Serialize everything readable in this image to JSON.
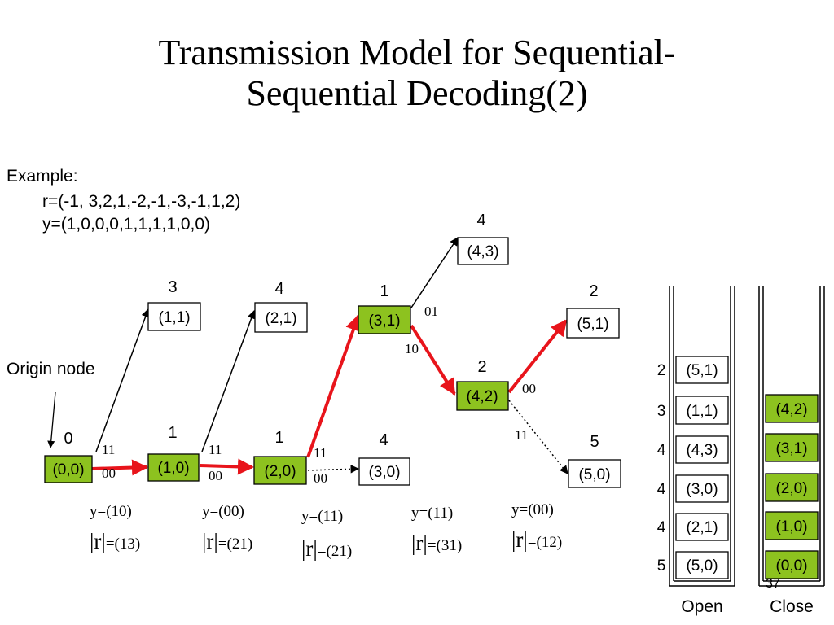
{
  "title_line1": "Transmission Model for Sequential-",
  "title_line2": "Sequential Decoding(2)",
  "example": {
    "label": "Example:",
    "r_line": "r=(-1, 3,2,1,-2,-1,-3,-1,1,2)",
    "y_line": "y=(1,0,0,0,1,1,1,1,0,0)"
  },
  "origin_label": "Origin node",
  "colors": {
    "node_fill": "#8DC21F",
    "path_red": "#E8141B",
    "outline": "#000000"
  },
  "nodes": [
    {
      "id": "n00",
      "label": "(0,0)",
      "metric": "0",
      "on_path": true
    },
    {
      "id": "n10",
      "label": "(1,0)",
      "metric": "1",
      "on_path": true
    },
    {
      "id": "n11",
      "label": "(1,1)",
      "metric": "3",
      "on_path": false
    },
    {
      "id": "n20",
      "label": "(2,0)",
      "metric": "1",
      "on_path": true
    },
    {
      "id": "n21",
      "label": "(2,1)",
      "metric": "4",
      "on_path": false
    },
    {
      "id": "n31",
      "label": "(3,1)",
      "metric": "1",
      "on_path": true
    },
    {
      "id": "n30",
      "label": "(3,0)",
      "metric": "4",
      "on_path": false
    },
    {
      "id": "n43",
      "label": "(4,3)",
      "metric": "4",
      "on_path": false
    },
    {
      "id": "n42",
      "label": "(4,2)",
      "metric": "2",
      "on_path": true
    },
    {
      "id": "n51",
      "label": "(5,1)",
      "metric": "2",
      "on_path": false
    },
    {
      "id": "n50",
      "label": "(5,0)",
      "metric": "5",
      "on_path": false
    }
  ],
  "edges": [
    {
      "from": "n00",
      "to": "n10",
      "style": "red"
    },
    {
      "from": "n00",
      "to": "n11",
      "style": "black"
    },
    {
      "from": "n10",
      "to": "n20",
      "style": "red"
    },
    {
      "from": "n10",
      "to": "n21",
      "style": "black"
    },
    {
      "from": "n20",
      "to": "n31",
      "style": "red"
    },
    {
      "from": "n20",
      "to": "n30",
      "style": "dotted"
    },
    {
      "from": "n31",
      "to": "n43",
      "style": "black"
    },
    {
      "from": "n31",
      "to": "n42",
      "style": "red"
    },
    {
      "from": "n42",
      "to": "n51",
      "style": "red"
    },
    {
      "from": "n42",
      "to": "n50",
      "style": "dotted"
    }
  ],
  "branch_labels": [
    "11",
    "00",
    "11",
    "00",
    "11",
    "00",
    "01",
    "10",
    "00",
    "11"
  ],
  "received": [
    {
      "y": "y=(10)",
      "r_prefix": "|r|",
      "r_value": "=(13)"
    },
    {
      "y": "y=(00)",
      "r_prefix": "|r|",
      "r_value": "=(21)"
    },
    {
      "y": "y=(11)",
      "r_prefix": "|r|",
      "r_value": "=(21)"
    },
    {
      "y": "y=(11)",
      "r_prefix": "|r|",
      "r_value": "=(31)"
    },
    {
      "y": "y=(00)",
      "r_prefix": "|r|",
      "r_value": "=(12)"
    }
  ],
  "open_stack": {
    "label": "Open",
    "items": [
      {
        "metric": "2",
        "node": "(5,1)"
      },
      {
        "metric": "3",
        "node": "(1,1)"
      },
      {
        "metric": "4",
        "node": "(4,3)"
      },
      {
        "metric": "4",
        "node": "(3,0)"
      },
      {
        "metric": "4",
        "node": "(2,1)"
      },
      {
        "metric": "5",
        "node": "(5,0)"
      }
    ]
  },
  "close_stack": {
    "label": "Close",
    "items": [
      "(4,2)",
      "(3,1)",
      "(2,0)",
      "(1,0)",
      "(0,0)"
    ]
  },
  "page_number": "37"
}
